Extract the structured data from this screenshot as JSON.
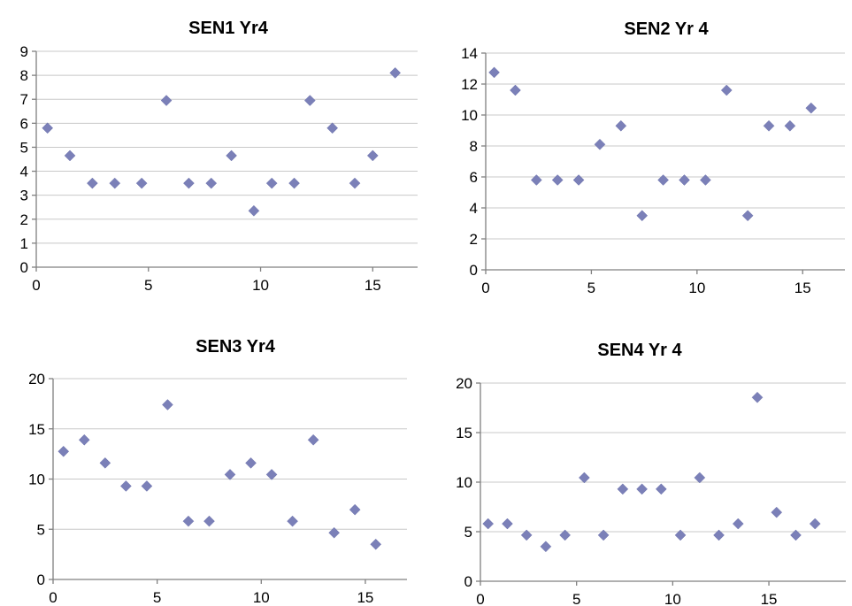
{
  "chart_data": [
    {
      "type": "scatter",
      "title": "SEN1 Yr4",
      "xlabel": "",
      "ylabel": "",
      "xlim": [
        0,
        17
      ],
      "ylim": [
        0,
        9
      ],
      "xticks": [
        0,
        5,
        10,
        15
      ],
      "yticks": [
        0,
        1,
        2,
        3,
        4,
        5,
        6,
        7,
        8,
        9
      ],
      "grid": "horizontal",
      "marker": "diamond",
      "color": "#7b80b8",
      "x": [
        0.5,
        1.5,
        2.5,
        3.5,
        4.7,
        5.8,
        6.8,
        7.8,
        8.7,
        9.7,
        10.5,
        11.5,
        12.2,
        13.2,
        14.2,
        15.0,
        16.0
      ],
      "y": [
        5.8,
        4.65,
        3.5,
        3.5,
        3.5,
        6.95,
        3.5,
        3.5,
        4.65,
        2.35,
        3.5,
        3.5,
        6.95,
        5.8,
        3.5,
        4.65,
        8.1
      ]
    },
    {
      "type": "scatter",
      "title": "SEN2 Yr 4",
      "xlabel": "",
      "ylabel": "",
      "xlim": [
        0,
        17
      ],
      "ylim": [
        0,
        14
      ],
      "xticks": [
        0,
        5,
        10,
        15
      ],
      "yticks": [
        0,
        2,
        4,
        6,
        8,
        10,
        12,
        14
      ],
      "grid": "horizontal",
      "marker": "diamond",
      "color": "#7b80b8",
      "x": [
        0.4,
        1.4,
        2.4,
        3.4,
        4.4,
        5.4,
        6.4,
        7.4,
        8.4,
        9.4,
        10.4,
        11.4,
        12.4,
        13.4,
        14.4,
        15.4
      ],
      "y": [
        12.75,
        11.6,
        5.8,
        5.8,
        5.8,
        8.1,
        9.3,
        3.5,
        5.8,
        5.8,
        5.8,
        11.6,
        3.5,
        9.3,
        9.3,
        10.45
      ]
    },
    {
      "type": "scatter",
      "title": "SEN3 Yr4",
      "xlabel": "",
      "ylabel": "",
      "xlim": [
        0,
        17
      ],
      "ylim": [
        0,
        20
      ],
      "xticks": [
        0,
        5,
        10,
        15
      ],
      "yticks": [
        0,
        5,
        10,
        15,
        20
      ],
      "grid": "horizontal",
      "marker": "diamond",
      "color": "#7b80b8",
      "x": [
        0.5,
        1.5,
        2.5,
        3.5,
        4.5,
        5.5,
        6.5,
        7.5,
        8.5,
        9.5,
        10.5,
        11.5,
        12.5,
        13.5,
        14.5,
        15.5
      ],
      "y": [
        12.75,
        13.9,
        11.6,
        9.3,
        9.3,
        17.4,
        5.8,
        5.8,
        10.45,
        11.6,
        10.45,
        5.8,
        13.9,
        4.65,
        6.95,
        3.5
      ]
    },
    {
      "type": "scatter",
      "title": "SEN4 Yr 4",
      "xlabel": "",
      "ylabel": "",
      "xlim": [
        0,
        19
      ],
      "ylim": [
        0,
        20
      ],
      "xticks": [
        0,
        5,
        10,
        15
      ],
      "yticks": [
        0,
        5,
        10,
        15,
        20
      ],
      "grid": "horizontal",
      "marker": "diamond",
      "color": "#7b80b8",
      "x": [
        0.4,
        1.4,
        2.4,
        3.4,
        4.4,
        5.4,
        6.4,
        7.4,
        8.4,
        9.4,
        10.4,
        11.4,
        12.4,
        13.4,
        14.4,
        15.4,
        16.4,
        17.4
      ],
      "y": [
        5.8,
        5.8,
        4.65,
        3.5,
        4.65,
        10.45,
        4.65,
        9.3,
        9.3,
        9.3,
        4.65,
        10.45,
        4.65,
        5.8,
        18.55,
        6.95,
        4.65,
        5.8
      ]
    }
  ]
}
